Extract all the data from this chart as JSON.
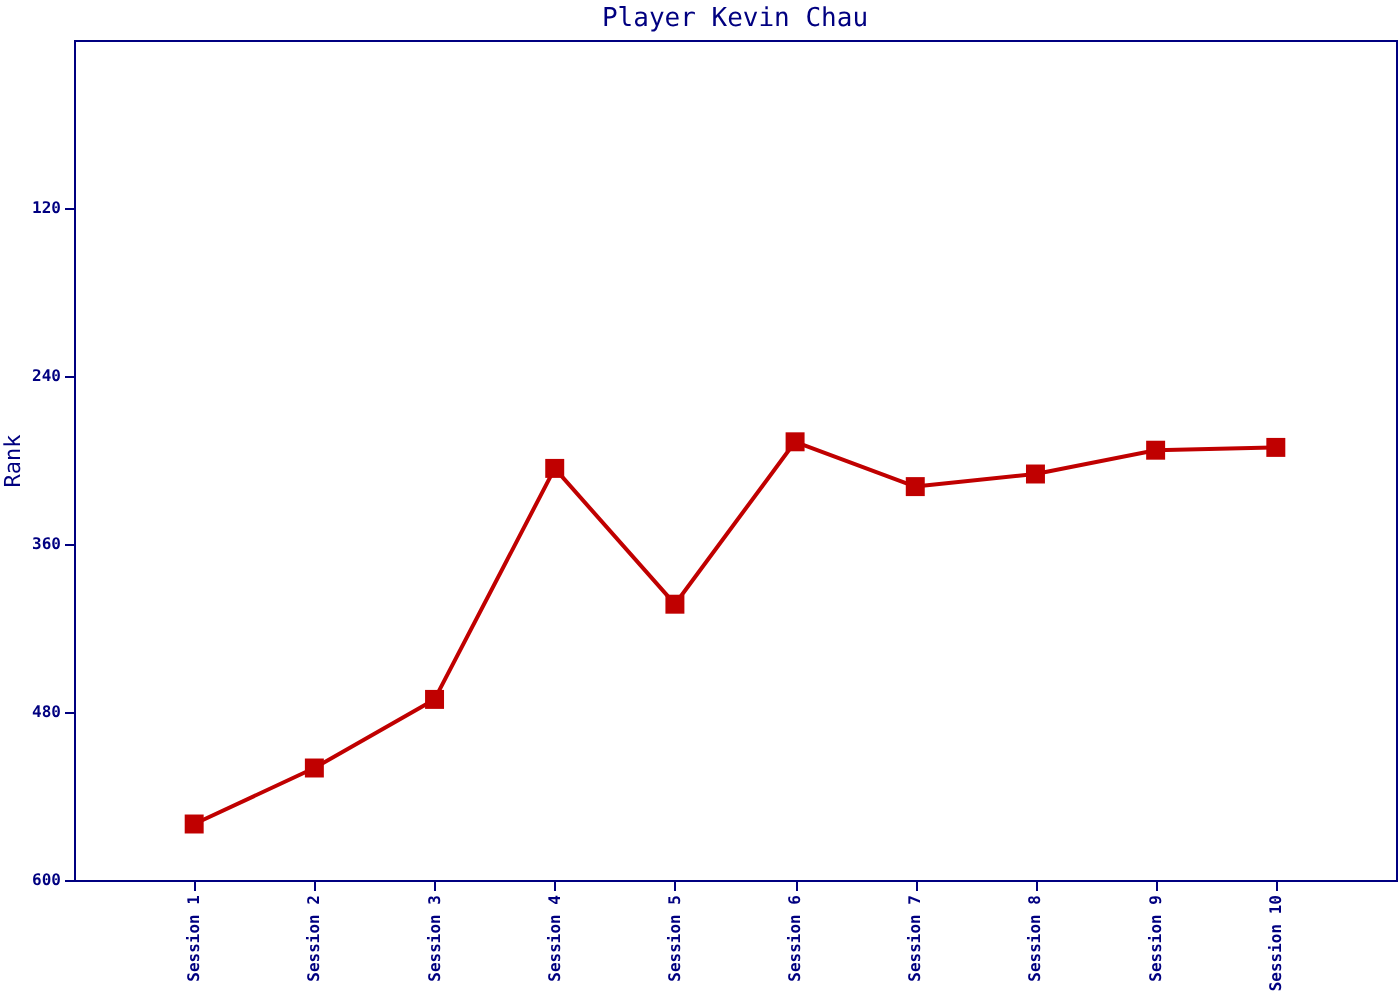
{
  "chart_data": {
    "type": "line",
    "title": "Player Kevin Chau",
    "ylabel": "Rank",
    "categories": [
      "Session 1",
      "Session 2",
      "Session 3",
      "Session 4",
      "Session 5",
      "Session 6",
      "Session 7",
      "Session 8",
      "Session 9",
      "Session 10"
    ],
    "series": [
      {
        "color": "#c00000",
        "values": [
          560,
          520,
          471,
          306,
          403,
          287,
          319,
          310,
          293,
          291
        ]
      }
    ],
    "ylim": [
      600,
      0
    ],
    "yticks": [
      120,
      240,
      360,
      480,
      600
    ],
    "grid": false,
    "marker": "square",
    "line_style": "solid"
  }
}
